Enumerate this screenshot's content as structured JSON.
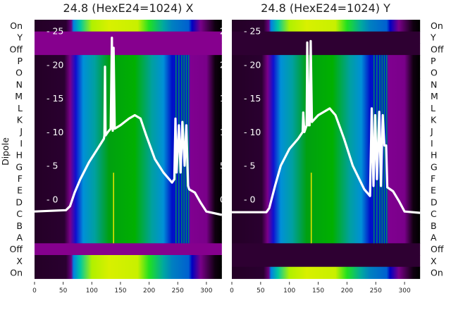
{
  "chart_data": [
    {
      "type": "heatmap",
      "title": "24.8 (HexE24=1024) X",
      "ylabel": "Dipole",
      "row_labels": [
        "On",
        "Y",
        "Off",
        "P",
        "O",
        "N",
        "M",
        "L",
        "K",
        "J",
        "I",
        "H",
        "G",
        "F",
        "E",
        "D",
        "C",
        "B",
        "A",
        "Off",
        "X",
        "On"
      ],
      "row_profile": [
        "on",
        "off",
        "off",
        "data",
        "data",
        "data",
        "data",
        "data",
        "data",
        "data",
        "data",
        "data",
        "data",
        "data",
        "data",
        "data",
        "data",
        "data",
        "data",
        "off",
        "on",
        "on"
      ],
      "xlim": [
        0,
        327
      ],
      "xticks": [
        "0",
        "50",
        "100",
        "150",
        "200",
        "250",
        "300"
      ],
      "overlay_yticks": [
        "0",
        "5",
        "10",
        "15",
        "20",
        "25"
      ],
      "overlay_ylim": [
        -5,
        26
      ],
      "overlay_series": {
        "name": "trace",
        "color": "#ffffff",
        "points": [
          [
            0,
            -1.8
          ],
          [
            55,
            -1.6
          ],
          [
            62,
            -1
          ],
          [
            70,
            1
          ],
          [
            80,
            3
          ],
          [
            95,
            5.5
          ],
          [
            110,
            7.5
          ],
          [
            121,
            9
          ],
          [
            122,
            9.5
          ],
          [
            123,
            19.7
          ],
          [
            124,
            9.5
          ],
          [
            128,
            10
          ],
          [
            133,
            10.5
          ],
          [
            135,
            24
          ],
          [
            136.5,
            10.2
          ],
          [
            138,
            22.5
          ],
          [
            140,
            10.5
          ],
          [
            150,
            11
          ],
          [
            165,
            12
          ],
          [
            175,
            12.5
          ],
          [
            185,
            12
          ],
          [
            195,
            9.5
          ],
          [
            210,
            6
          ],
          [
            225,
            4
          ],
          [
            240,
            2.5
          ],
          [
            244,
            3
          ],
          [
            246,
            12
          ],
          [
            248,
            4
          ],
          [
            252,
            11
          ],
          [
            255,
            4
          ],
          [
            258,
            11.5
          ],
          [
            262,
            5
          ],
          [
            265,
            11
          ],
          [
            268,
            2
          ],
          [
            270,
            1.5
          ],
          [
            280,
            1
          ],
          [
            290,
            -0.5
          ],
          [
            300,
            -1.8
          ],
          [
            327,
            -2.3
          ]
        ]
      },
      "off_color": "#86008e"
    },
    {
      "type": "heatmap",
      "title": "24.8 (HexE24=1024) Y",
      "row_labels": [
        "On",
        "Y",
        "Off",
        "P",
        "O",
        "N",
        "M",
        "L",
        "K",
        "J",
        "I",
        "H",
        "G",
        "F",
        "E",
        "D",
        "C",
        "B",
        "A",
        "Off",
        "X",
        "On"
      ],
      "row_profile": [
        "on",
        "off",
        "off",
        "data",
        "data",
        "data",
        "data",
        "data",
        "data",
        "data",
        "data",
        "data",
        "data",
        "data",
        "data",
        "data",
        "data",
        "data",
        "data",
        "off",
        "off",
        "on"
      ],
      "xlim": [
        0,
        327
      ],
      "xticks": [
        "0",
        "50",
        "100",
        "150",
        "200",
        "250",
        "300"
      ],
      "overlay_yticks": [
        "0",
        "5",
        "10",
        "15",
        "20",
        "25"
      ],
      "overlay_ylim": [
        -5,
        26
      ],
      "overlay_series": {
        "name": "trace",
        "color": "#ffffff",
        "points": [
          [
            0,
            -1.9
          ],
          [
            60,
            -1.9
          ],
          [
            65,
            -1.3
          ],
          [
            75,
            2
          ],
          [
            85,
            5
          ],
          [
            100,
            7.5
          ],
          [
            115,
            9
          ],
          [
            123,
            10
          ],
          [
            124,
            12.9
          ],
          [
            126,
            10
          ],
          [
            130,
            11
          ],
          [
            131,
            23.3
          ],
          [
            133,
            11
          ],
          [
            135,
            11
          ],
          [
            137,
            23.5
          ],
          [
            139,
            11.5
          ],
          [
            150,
            12.5
          ],
          [
            170,
            13.5
          ],
          [
            180,
            12.5
          ],
          [
            195,
            9
          ],
          [
            210,
            5
          ],
          [
            230,
            1.5
          ],
          [
            240,
            0.5
          ],
          [
            243,
            13.5
          ],
          [
            246,
            2
          ],
          [
            249,
            12.5
          ],
          [
            252,
            3
          ],
          [
            256,
            13
          ],
          [
            259,
            2
          ],
          [
            262,
            12.5
          ],
          [
            265,
            8
          ],
          [
            268,
            8
          ],
          [
            270,
            1.8
          ],
          [
            280,
            1.2
          ],
          [
            290,
            -0.2
          ],
          [
            300,
            -1.8
          ],
          [
            327,
            -2
          ]
        ]
      },
      "off_color": "#2e0032"
    }
  ],
  "profiles": {
    "data": [
      [
        0,
        "#240026"
      ],
      [
        52,
        "#2a0030"
      ],
      [
        62,
        "#7a008a"
      ],
      [
        72,
        "#1010d0"
      ],
      [
        85,
        "#0090d8"
      ],
      [
        105,
        "#00a0a0"
      ],
      [
        130,
        "#00a010"
      ],
      [
        175,
        "#00b000"
      ],
      [
        205,
        "#00a0a0"
      ],
      [
        225,
        "#0090d8"
      ],
      [
        240,
        "#0010c8"
      ],
      [
        269,
        "#0020d0"
      ],
      [
        272,
        "#800090"
      ],
      [
        300,
        "#7a008a"
      ],
      [
        315,
        "#100010"
      ],
      [
        327,
        "#000000"
      ]
    ],
    "on": [
      [
        0,
        "#240026"
      ],
      [
        55,
        "#2a0030"
      ],
      [
        64,
        "#6a0080"
      ],
      [
        68,
        "#0080e0"
      ],
      [
        80,
        "#00c8a0"
      ],
      [
        100,
        "#b0f000"
      ],
      [
        130,
        "#d8f000"
      ],
      [
        180,
        "#c8f000"
      ],
      [
        200,
        "#20e020"
      ],
      [
        225,
        "#00a8a0"
      ],
      [
        240,
        "#0080c0"
      ],
      [
        269,
        "#0060d0"
      ],
      [
        275,
        "#0000c0"
      ],
      [
        290,
        "#7a008a"
      ],
      [
        315,
        "#100010"
      ],
      [
        327,
        "#000000"
      ]
    ]
  }
}
